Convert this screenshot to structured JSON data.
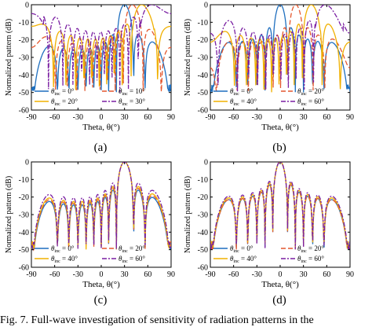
{
  "caption": "Fig. 7.   Full-wave investigation of sensitivity of radiation patterns in the",
  "panel_labels": [
    "(a)",
    "(b)",
    "(c)",
    "(d)"
  ],
  "colors": {
    "blue": "#1f6fbf",
    "orange": "#e4572e",
    "gold": "#f0b000",
    "purple": "#7a1fa2"
  },
  "chart_data": [
    {
      "type": "line",
      "panel": "(a)",
      "xlabel": "Theta, θ(°)",
      "ylabel": "Normalized pattern (dB)",
      "xlim": [
        -90,
        90
      ],
      "ylim": [
        -60,
        0
      ],
      "xticks": [
        -90,
        -60,
        -30,
        0,
        30,
        60,
        90
      ],
      "yticks": [
        0,
        -10,
        -20,
        -30,
        -40,
        -50,
        -60
      ],
      "grid": false,
      "legend_loc": "lower-left",
      "legend_cols": 2,
      "series": [
        {
          "name": "θinc = 0°",
          "name_main": "θ",
          "name_sub": "inc",
          "name_rest": " = 0°",
          "color": "#1f6fbf",
          "dash": "",
          "steer": 30,
          "n": 12,
          "level": -28,
          "droop": 16,
          "seed": 1
        },
        {
          "name": "θinc = 10°",
          "name_main": "θ",
          "name_sub": "inc",
          "name_rest": " = 10°",
          "color": "#e4572e",
          "dash": "6,3",
          "steer": 40,
          "n": 12,
          "level": -25,
          "droop": 10,
          "seed": 2
        },
        {
          "name": "θinc = 20°",
          "name_main": "θ",
          "name_sub": "inc",
          "name_rest": " = 20°",
          "color": "#f0b000",
          "dash": "",
          "steer": 52,
          "n": 12,
          "level": -22,
          "droop": 8,
          "seed": 3
        },
        {
          "name": "θinc = 30°",
          "name_main": "θ",
          "name_sub": "inc",
          "name_rest": " = 30°",
          "color": "#7a1fa2",
          "dash": "6,2,2,2",
          "steer": 65,
          "n": 12,
          "level": -18,
          "droop": 6,
          "seed": 4
        }
      ]
    },
    {
      "type": "line",
      "panel": "(b)",
      "xlabel": "Theta, θ(°)",
      "ylabel": "Normalized pattern (dB)",
      "xlim": [
        -90,
        90
      ],
      "ylim": [
        -60,
        0
      ],
      "xticks": [
        -90,
        -60,
        -30,
        0,
        30,
        60,
        90
      ],
      "yticks": [
        0,
        -10,
        -20,
        -30,
        -40,
        -50,
        -60
      ],
      "grid": false,
      "legend_loc": "lower-left",
      "legend_cols": 2,
      "series": [
        {
          "name": "θinc = 0°",
          "name_main": "θ",
          "name_sub": "inc",
          "name_rest": " = 0°",
          "color": "#1f6fbf",
          "dash": "",
          "steer": 0,
          "n": 12,
          "level": -24,
          "droop": 16,
          "seed": 5
        },
        {
          "name": "θinc = 20°",
          "name_main": "θ",
          "name_sub": "inc",
          "name_rest": " = 20°",
          "color": "#e4572e",
          "dash": "6,3",
          "steer": 20,
          "n": 12,
          "level": -24,
          "droop": 14,
          "seed": 6
        },
        {
          "name": "θinc = 40°",
          "name_main": "θ",
          "name_sub": "inc",
          "name_rest": " = 40°",
          "color": "#f0b000",
          "dash": "",
          "steer": 40,
          "n": 12,
          "level": -22,
          "droop": 10,
          "seed": 7
        },
        {
          "name": "θinc = 60°",
          "name_main": "θ",
          "name_sub": "inc",
          "name_rest": " = 60°",
          "color": "#7a1fa2",
          "dash": "6,2,2,2",
          "steer": 58,
          "n": 12,
          "level": -20,
          "droop": 8,
          "seed": 8
        }
      ]
    },
    {
      "type": "line",
      "panel": "(c)",
      "xlabel": "Theta, θ(°)",
      "ylabel": "Normalized pattern (dB)",
      "xlim": [
        -90,
        90
      ],
      "ylim": [
        -60,
        0
      ],
      "xticks": [
        -90,
        -60,
        -30,
        0,
        30,
        60,
        90
      ],
      "yticks": [
        0,
        -10,
        -20,
        -30,
        -40,
        -50,
        -60
      ],
      "grid": false,
      "legend_loc": "lower-left",
      "legend_cols": 2,
      "series": [
        {
          "name": "θinc = 0°",
          "name_main": "θ",
          "name_sub": "inc",
          "name_rest": " = 0°",
          "color": "#1f6fbf",
          "dash": "",
          "steer": 30,
          "n": 12,
          "level": -27,
          "droop": 14,
          "seed": 9
        },
        {
          "name": "θinc = 20°",
          "name_main": "θ",
          "name_sub": "inc",
          "name_rest": " = 20°",
          "color": "#e4572e",
          "dash": "6,3",
          "steer": 30,
          "n": 12,
          "level": -26,
          "droop": 12,
          "seed": 10
        },
        {
          "name": "θinc = 40°",
          "name_main": "θ",
          "name_sub": "inc",
          "name_rest": " = 40°",
          "color": "#f0b000",
          "dash": "",
          "steer": 30,
          "n": 12,
          "level": -25,
          "droop": 10,
          "seed": 11
        },
        {
          "name": "θinc = 60°",
          "name_main": "θ",
          "name_sub": "inc",
          "name_rest": " = 60°",
          "color": "#7a1fa2",
          "dash": "6,2,2,2",
          "steer": 30,
          "n": 12,
          "level": -23,
          "droop": 8,
          "seed": 12
        }
      ]
    },
    {
      "type": "line",
      "panel": "(d)",
      "xlabel": "Theta, θ(°)",
      "ylabel": "Normalized pattern (dB)",
      "xlim": [
        -90,
        90
      ],
      "ylim": [
        -60,
        0
      ],
      "xticks": [
        -90,
        -60,
        -30,
        0,
        30,
        60,
        90
      ],
      "yticks": [
        0,
        -10,
        -20,
        -30,
        -40,
        -50,
        -60
      ],
      "grid": false,
      "legend_loc": "lower-left",
      "legend_cols": 2,
      "series": [
        {
          "name": "θinc = 0°",
          "name_main": "θ",
          "name_sub": "inc",
          "name_rest": " = 0°",
          "color": "#1f6fbf",
          "dash": "",
          "steer": 0,
          "n": 12,
          "level": -24,
          "droop": 16,
          "seed": 13
        },
        {
          "name": "θinc = 20°",
          "name_main": "θ",
          "name_sub": "inc",
          "name_rest": " = 20°",
          "color": "#e4572e",
          "dash": "6,3",
          "steer": 0,
          "n": 12,
          "level": -24,
          "droop": 14,
          "seed": 14
        },
        {
          "name": "θinc = 40°",
          "name_main": "θ",
          "name_sub": "inc",
          "name_rest": " = 40°",
          "color": "#f0b000",
          "dash": "",
          "steer": 0,
          "n": 12,
          "level": -23,
          "droop": 12,
          "seed": 15
        },
        {
          "name": "θinc = 60°",
          "name_main": "θ",
          "name_sub": "inc",
          "name_rest": " = 60°",
          "color": "#7a1fa2",
          "dash": "6,2,2,2",
          "steer": 0,
          "n": 12,
          "level": -22,
          "droop": 10,
          "seed": 16
        }
      ]
    }
  ]
}
